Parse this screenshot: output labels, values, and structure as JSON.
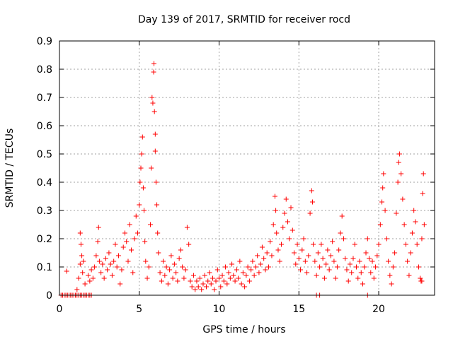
{
  "chart_data": {
    "type": "scatter",
    "title": "Day 139 of 2017, SRMTID for receiver rocd",
    "xlabel": "GPS time / hours",
    "ylabel": "SRMTID / TECUs",
    "xlim": [
      0,
      23.5
    ],
    "ylim": [
      0,
      0.9
    ],
    "grid": true,
    "marker": "+",
    "color": "#ff0000",
    "xticks": [
      {
        "value": 0,
        "label": "0"
      },
      {
        "value": 5,
        "label": "5"
      },
      {
        "value": 10,
        "label": "10"
      },
      {
        "value": 15,
        "label": "15"
      },
      {
        "value": 20,
        "label": "20"
      }
    ],
    "yticks": [
      {
        "value": 0,
        "label": "0"
      },
      {
        "value": 0.1,
        "label": "0.1"
      },
      {
        "value": 0.2,
        "label": "0.2"
      },
      {
        "value": 0.3,
        "label": "0.3"
      },
      {
        "value": 0.4,
        "label": "0.4"
      },
      {
        "value": 0.5,
        "label": "0.5"
      },
      {
        "value": 0.6,
        "label": "0.6"
      },
      {
        "value": 0.7,
        "label": "0.7"
      },
      {
        "value": 0.8,
        "label": "0.8"
      },
      {
        "value": 0.9,
        "label": "0.9"
      }
    ],
    "series": [
      {
        "name": "SRMTID",
        "points": [
          [
            0.1,
            0
          ],
          [
            0.2,
            0
          ],
          [
            0.3,
            0
          ],
          [
            0.4,
            0
          ],
          [
            0.5,
            0
          ],
          [
            0.6,
            0
          ],
          [
            0.7,
            0
          ],
          [
            0.8,
            0
          ],
          [
            0.9,
            0
          ],
          [
            1.0,
            0
          ],
          [
            1.1,
            0
          ],
          [
            1.2,
            0
          ],
          [
            1.3,
            0
          ],
          [
            1.4,
            0
          ],
          [
            1.5,
            0
          ],
          [
            1.6,
            0
          ],
          [
            1.7,
            0
          ],
          [
            1.8,
            0
          ],
          [
            1.9,
            0
          ],
          [
            2.0,
            0
          ],
          [
            0.45,
            0.085
          ],
          [
            1.1,
            0.02
          ],
          [
            1.2,
            0.06
          ],
          [
            1.3,
            0.11
          ],
          [
            1.3,
            0.22
          ],
          [
            1.35,
            0.18
          ],
          [
            1.4,
            0.14
          ],
          [
            1.45,
            0.08
          ],
          [
            1.5,
            0.12
          ],
          [
            1.6,
            0.04
          ],
          [
            1.8,
            0.07
          ],
          [
            1.9,
            0.05
          ],
          [
            2.0,
            0.09
          ],
          [
            2.1,
            0.06
          ],
          [
            2.2,
            0.1
          ],
          [
            2.3,
            0.14
          ],
          [
            2.4,
            0.19
          ],
          [
            2.45,
            0.24
          ],
          [
            2.5,
            0.12
          ],
          [
            2.6,
            0.08
          ],
          [
            2.7,
            0.11
          ],
          [
            2.8,
            0.06
          ],
          [
            2.9,
            0.13
          ],
          [
            3.0,
            0.09
          ],
          [
            3.1,
            0.15
          ],
          [
            3.2,
            0.11
          ],
          [
            3.3,
            0.07
          ],
          [
            3.4,
            0.12
          ],
          [
            3.5,
            0.18
          ],
          [
            3.6,
            0.1
          ],
          [
            3.7,
            0.14
          ],
          [
            3.8,
            0.04
          ],
          [
            3.9,
            0.09
          ],
          [
            4.0,
            0.17
          ],
          [
            4.1,
            0.22
          ],
          [
            4.2,
            0.19
          ],
          [
            4.3,
            0.12
          ],
          [
            4.4,
            0.25
          ],
          [
            4.5,
            0.16
          ],
          [
            4.6,
            0.08
          ],
          [
            4.7,
            0.2
          ],
          [
            4.8,
            0.28
          ],
          [
            4.9,
            0.22
          ],
          [
            5.0,
            0.32
          ],
          [
            5.05,
            0.4
          ],
          [
            5.1,
            0.45
          ],
          [
            5.15,
            0.5
          ],
          [
            5.2,
            0.56
          ],
          [
            5.25,
            0.38
          ],
          [
            5.3,
            0.3
          ],
          [
            5.35,
            0.19
          ],
          [
            5.4,
            0.12
          ],
          [
            5.5,
            0.06
          ],
          [
            5.6,
            0.1
          ],
          [
            5.7,
            0.25
          ],
          [
            5.75,
            0.45
          ],
          [
            5.8,
            0.7
          ],
          [
            5.85,
            0.68
          ],
          [
            5.9,
            0.79
          ],
          [
            5.92,
            0.82
          ],
          [
            5.95,
            0.65
          ],
          [
            6.0,
            0.57
          ],
          [
            6.0,
            0.51
          ],
          [
            6.05,
            0.4
          ],
          [
            6.1,
            0.32
          ],
          [
            6.15,
            0.22
          ],
          [
            6.2,
            0.15
          ],
          [
            6.3,
            0.08
          ],
          [
            6.4,
            0.05
          ],
          [
            6.5,
            0.12
          ],
          [
            6.6,
            0.07
          ],
          [
            6.7,
            0.1
          ],
          [
            6.8,
            0.04
          ],
          [
            6.9,
            0.09
          ],
          [
            7.0,
            0.14
          ],
          [
            7.1,
            0.06
          ],
          [
            7.2,
            0.11
          ],
          [
            7.3,
            0.08
          ],
          [
            7.4,
            0.05
          ],
          [
            7.5,
            0.13
          ],
          [
            7.6,
            0.16
          ],
          [
            7.7,
            0.1
          ],
          [
            7.8,
            0.06
          ],
          [
            7.9,
            0.09
          ],
          [
            8.0,
            0.24
          ],
          [
            8.1,
            0.18
          ],
          [
            8.2,
            0.05
          ],
          [
            8.3,
            0.03
          ],
          [
            8.4,
            0.07
          ],
          [
            8.5,
            0.02
          ],
          [
            8.6,
            0.05
          ],
          [
            8.7,
            0.03
          ],
          [
            8.8,
            0.06
          ],
          [
            8.9,
            0.02
          ],
          [
            9.0,
            0.04
          ],
          [
            9.1,
            0.07
          ],
          [
            9.2,
            0.03
          ],
          [
            9.3,
            0.05
          ],
          [
            9.4,
            0.08
          ],
          [
            9.5,
            0.04
          ],
          [
            9.6,
            0.06
          ],
          [
            9.7,
            0.02
          ],
          [
            9.8,
            0.05
          ],
          [
            9.9,
            0.09
          ],
          [
            10.0,
            0.06
          ],
          [
            10.1,
            0.03
          ],
          [
            10.2,
            0.07
          ],
          [
            10.3,
            0.05
          ],
          [
            10.4,
            0.1
          ],
          [
            10.5,
            0.04
          ],
          [
            10.6,
            0.08
          ],
          [
            10.7,
            0.06
          ],
          [
            10.8,
            0.11
          ],
          [
            10.9,
            0.07
          ],
          [
            11.0,
            0.05
          ],
          [
            11.1,
            0.09
          ],
          [
            11.2,
            0.06
          ],
          [
            11.3,
            0.12
          ],
          [
            11.4,
            0.04
          ],
          [
            11.5,
            0.08
          ],
          [
            11.6,
            0.03
          ],
          [
            11.7,
            0.07
          ],
          [
            11.8,
            0.1
          ],
          [
            11.9,
            0.05
          ],
          [
            12.0,
            0.09
          ],
          [
            12.1,
            0.12
          ],
          [
            12.2,
            0.07
          ],
          [
            12.3,
            0.1
          ],
          [
            12.4,
            0.14
          ],
          [
            12.5,
            0.08
          ],
          [
            12.6,
            0.11
          ],
          [
            12.7,
            0.17
          ],
          [
            12.8,
            0.13
          ],
          [
            12.9,
            0.09
          ],
          [
            13.0,
            0.15
          ],
          [
            13.1,
            0.1
          ],
          [
            13.2,
            0.19
          ],
          [
            13.3,
            0.14
          ],
          [
            13.4,
            0.25
          ],
          [
            13.5,
            0.35
          ],
          [
            13.55,
            0.3
          ],
          [
            13.6,
            0.22
          ],
          [
            13.7,
            0.16
          ],
          [
            13.8,
            0.12
          ],
          [
            13.9,
            0.18
          ],
          [
            14.0,
            0.24
          ],
          [
            14.1,
            0.29
          ],
          [
            14.2,
            0.34
          ],
          [
            14.3,
            0.26
          ],
          [
            14.4,
            0.2
          ],
          [
            14.5,
            0.31
          ],
          [
            14.6,
            0.23
          ],
          [
            14.7,
            0.15
          ],
          [
            14.8,
            0.11
          ],
          [
            14.9,
            0.18
          ],
          [
            15.0,
            0.13
          ],
          [
            15.1,
            0.09
          ],
          [
            15.2,
            0.16
          ],
          [
            15.3,
            0.2
          ],
          [
            15.4,
            0.12
          ],
          [
            15.5,
            0.08
          ],
          [
            15.6,
            0.14
          ],
          [
            15.7,
            0.29
          ],
          [
            15.8,
            0.37
          ],
          [
            15.85,
            0.33
          ],
          [
            15.9,
            0.18
          ],
          [
            16.0,
            0.12
          ],
          [
            16.1,
            0.07
          ],
          [
            16.2,
            0.15
          ],
          [
            16.3,
            0.1
          ],
          [
            16.4,
            0.18
          ],
          [
            16.5,
            0.13
          ],
          [
            16.6,
            0.06
          ],
          [
            16.7,
            0.11
          ],
          [
            16.8,
            0.16
          ],
          [
            16.9,
            0.09
          ],
          [
            17.0,
            0.14
          ],
          [
            17.1,
            0.19
          ],
          [
            17.2,
            0.12
          ],
          [
            17.3,
            0.06
          ],
          [
            17.4,
            0.1
          ],
          [
            17.5,
            0.16
          ],
          [
            17.6,
            0.22
          ],
          [
            17.7,
            0.28
          ],
          [
            17.8,
            0.2
          ],
          [
            17.9,
            0.13
          ],
          [
            18.0,
            0.09
          ],
          [
            18.1,
            0.05
          ],
          [
            18.2,
            0.11
          ],
          [
            18.3,
            0.08
          ],
          [
            18.4,
            0.13
          ],
          [
            18.5,
            0.18
          ],
          [
            18.6,
            0.1
          ],
          [
            18.7,
            0.06
          ],
          [
            18.8,
            0.12
          ],
          [
            18.9,
            0.08
          ],
          [
            19.0,
            0.04
          ],
          [
            19.1,
            0.1
          ],
          [
            19.2,
            0.15
          ],
          [
            19.3,
            0.2
          ],
          [
            19.4,
            0.13
          ],
          [
            19.5,
            0.08
          ],
          [
            19.6,
            0.12
          ],
          [
            19.7,
            0.06
          ],
          [
            19.8,
            0.1
          ],
          [
            19.9,
            0.14
          ],
          [
            20.0,
            0.18
          ],
          [
            20.1,
            0.25
          ],
          [
            20.2,
            0.33
          ],
          [
            20.25,
            0.38
          ],
          [
            20.3,
            0.43
          ],
          [
            20.4,
            0.3
          ],
          [
            20.5,
            0.2
          ],
          [
            20.6,
            0.12
          ],
          [
            20.7,
            0.07
          ],
          [
            20.8,
            0.04
          ],
          [
            20.9,
            0.1
          ],
          [
            21.0,
            0.15
          ],
          [
            21.1,
            0.29
          ],
          [
            21.2,
            0.4
          ],
          [
            21.25,
            0.47
          ],
          [
            21.3,
            0.5
          ],
          [
            21.4,
            0.43
          ],
          [
            21.5,
            0.34
          ],
          [
            21.6,
            0.25
          ],
          [
            21.7,
            0.18
          ],
          [
            21.8,
            0.12
          ],
          [
            21.9,
            0.07
          ],
          [
            22.0,
            0.15
          ],
          [
            22.1,
            0.22
          ],
          [
            22.2,
            0.3
          ],
          [
            22.3,
            0.26
          ],
          [
            22.4,
            0.18
          ],
          [
            22.5,
            0.1
          ],
          [
            22.6,
            0.06
          ],
          [
            22.65,
            0.05
          ],
          [
            22.7,
            0.2
          ],
          [
            22.75,
            0.36
          ],
          [
            22.8,
            0.43
          ],
          [
            22.85,
            0.25
          ],
          [
            16.1,
            0
          ],
          [
            16.3,
            0
          ],
          [
            19.3,
            0
          ],
          [
            22.7,
            0.05
          ]
        ]
      }
    ]
  }
}
